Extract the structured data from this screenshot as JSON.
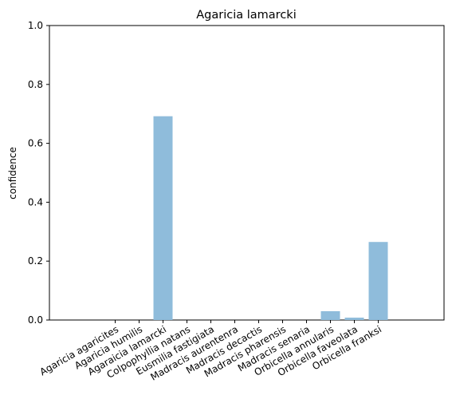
{
  "chart_data": {
    "type": "bar",
    "title": "Agaricia lamarcki",
    "xlabel": "",
    "ylabel": "confidence",
    "ylim": [
      0,
      1
    ],
    "yticks": [
      "0.0",
      "0.2",
      "0.4",
      "0.6",
      "0.8",
      "1.0"
    ],
    "categories": [
      "Agaricia agaricites",
      "Agaricia humilis",
      "Agaraicia lamarcki",
      "Colpophyllia natans",
      "Eusmilia fastigiata",
      "Madracis aurentenra",
      "Madracis decactis",
      "Madracis pharensis",
      "Madracis senaria",
      "Orbicella annularis",
      "Orbicella faveolata",
      "Orbicella franksi"
    ],
    "values": [
      0.0,
      0.0,
      0.692,
      0.0,
      0.0,
      0.0,
      0.0,
      0.0,
      0.0,
      0.03,
      0.008,
      0.265
    ],
    "bar_color": "#8fbcdb",
    "grid": false,
    "legend": false
  }
}
